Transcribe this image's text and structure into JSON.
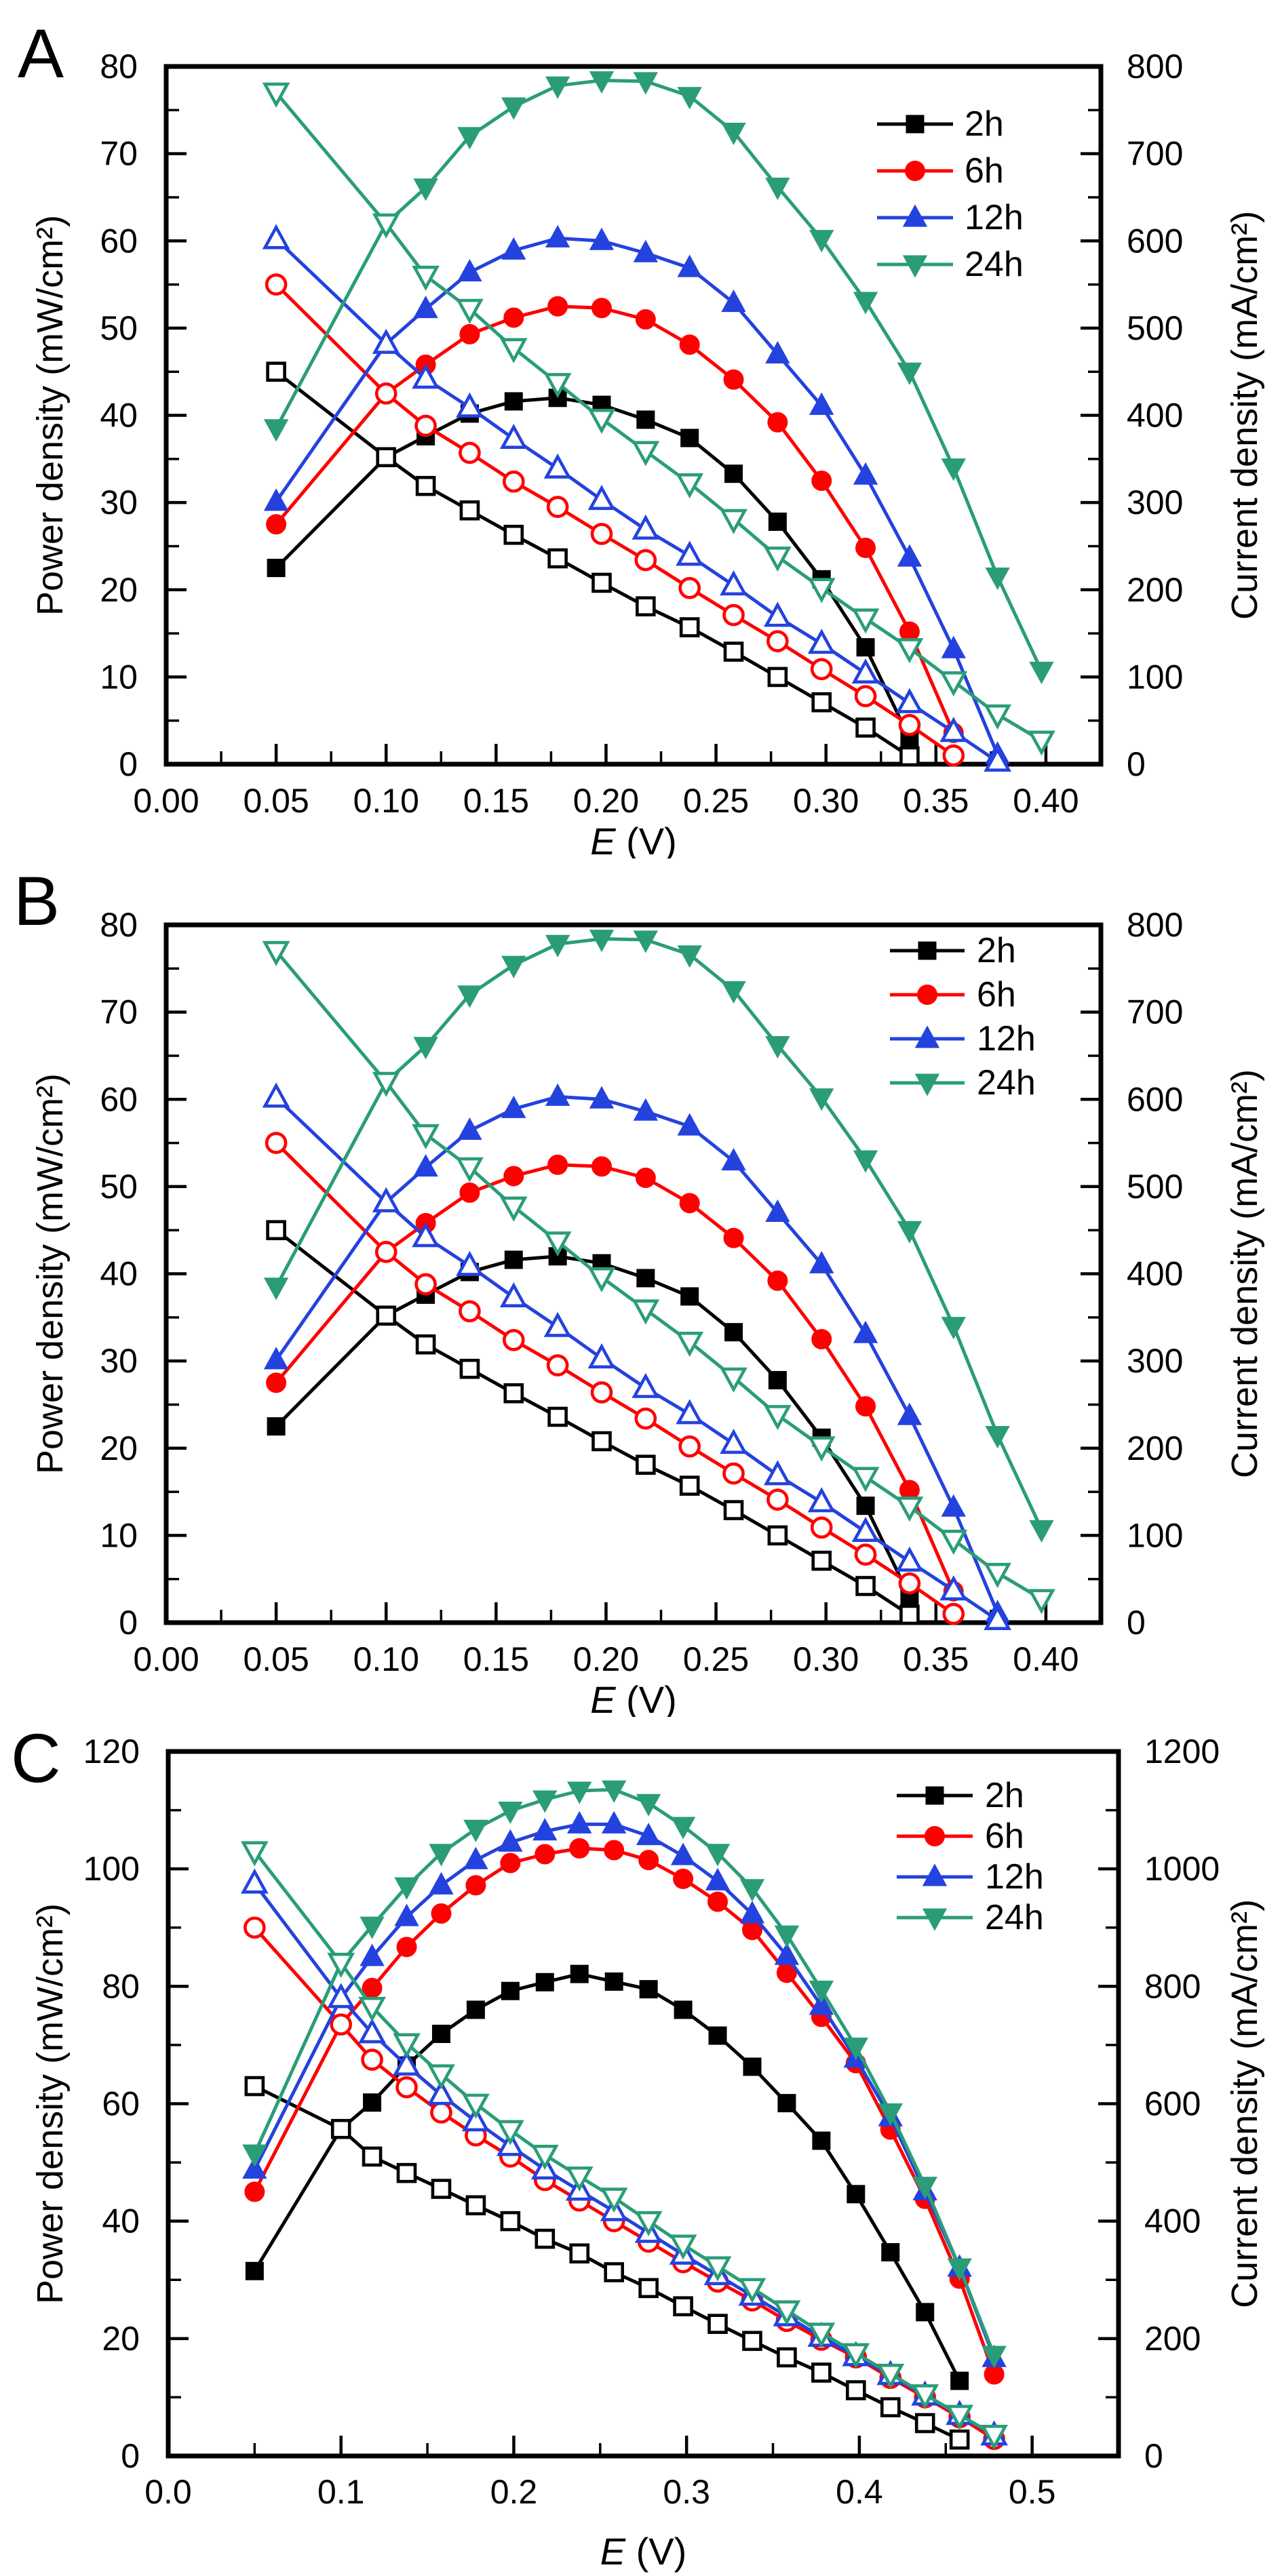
{
  "figure": {
    "background": "#ffffff",
    "text_color": "#000000"
  },
  "chart_data": [
    {
      "panel": "A",
      "type": "line",
      "xlabel": {
        "symbol": "E",
        "unit": "(V)"
      },
      "ylabel_left": "Power density (mW/cm²)",
      "ylabel_right": "Current density (mA/cm²)",
      "x_range": [
        0,
        0.425
      ],
      "y_left_range": [
        0,
        80
      ],
      "y_right_range": [
        0,
        800
      ],
      "x_ticks": {
        "major": [
          0,
          0.05,
          0.1,
          0.15,
          0.2,
          0.25,
          0.3,
          0.35,
          0.4
        ],
        "labels": [
          "0.00",
          "0.05",
          "0.10",
          "0.15",
          "0.20",
          "0.25",
          "0.30",
          "0.35",
          "0.40"
        ],
        "minor": [
          0.025,
          0.075,
          0.125,
          0.175,
          0.225,
          0.275,
          0.325,
          0.375
        ]
      },
      "y_left_ticks": {
        "major": [
          0,
          10,
          20,
          30,
          40,
          50,
          60,
          70,
          80
        ],
        "labels": [
          "0",
          "10",
          "20",
          "30",
          "40",
          "50",
          "60",
          "70",
          "80"
        ],
        "minor": [
          5,
          15,
          25,
          35,
          45,
          55,
          65,
          75
        ]
      },
      "y_right_ticks": {
        "major": [
          0,
          100,
          200,
          300,
          400,
          500,
          600,
          700,
          800
        ],
        "labels": [
          "0",
          "100",
          "200",
          "300",
          "400",
          "500",
          "600",
          "700",
          "800"
        ],
        "minor": [
          50,
          150,
          250,
          350,
          450,
          550,
          650,
          750
        ]
      },
      "legend": {
        "position": "top-right",
        "entries": [
          "2h",
          "6h",
          "12h",
          "24h"
        ]
      },
      "series": [
        {
          "name": "2h",
          "color": "#000000",
          "marker": "square",
          "x": [
            0.05,
            0.1,
            0.118,
            0.138,
            0.158,
            0.178,
            0.198,
            0.218,
            0.238,
            0.258,
            0.278,
            0.298,
            0.318,
            0.338
          ],
          "power_mW_cm2": [
            22.5,
            35.2,
            37.6,
            40.2,
            41.6,
            42.0,
            41.2,
            39.5,
            37.4,
            33.3,
            27.8,
            21.2,
            13.4,
            3.0
          ],
          "current_mA_cm2": [
            450,
            352,
            319,
            291,
            263,
            236,
            208,
            181,
            157,
            129,
            100,
            71,
            42,
            9
          ]
        },
        {
          "name": "6h",
          "color": "#ff0000",
          "marker": "circle",
          "x": [
            0.05,
            0.1,
            0.118,
            0.138,
            0.158,
            0.178,
            0.198,
            0.218,
            0.238,
            0.258,
            0.278,
            0.298,
            0.318,
            0.338,
            0.358
          ],
          "power_mW_cm2": [
            27.5,
            42.5,
            45.8,
            49.3,
            51.2,
            52.5,
            52.3,
            51.0,
            48.1,
            44.1,
            39.2,
            32.5,
            24.8,
            15.2,
            3.6
          ],
          "current_mA_cm2": [
            550,
            425,
            388,
            357,
            324,
            295,
            264,
            234,
            202,
            171,
            141,
            109,
            78,
            45,
            10
          ]
        },
        {
          "name": "12h",
          "color": "#2442dd",
          "marker": "triangle-up",
          "x": [
            0.05,
            0.1,
            0.118,
            0.138,
            0.158,
            0.178,
            0.198,
            0.218,
            0.238,
            0.258,
            0.278,
            0.298,
            0.318,
            0.338,
            0.358,
            0.378
          ],
          "power_mW_cm2": [
            30.1,
            48.2,
            52.2,
            56.4,
            58.9,
            60.3,
            60.0,
            58.6,
            56.9,
            52.9,
            47.0,
            41.1,
            33.1,
            23.7,
            13.2,
            1.1
          ],
          "current_mA_cm2": [
            602,
            482,
            442,
            409,
            373,
            339,
            303,
            269,
            239,
            205,
            169,
            138,
            104,
            70,
            37,
            3
          ]
        },
        {
          "name": "24h",
          "color": "#2a9d78",
          "marker": "triangle-down",
          "x": [
            0.05,
            0.1,
            0.118,
            0.138,
            0.158,
            0.178,
            0.198,
            0.218,
            0.238,
            0.258,
            0.278,
            0.298,
            0.318,
            0.338,
            0.358,
            0.378,
            0.398
          ],
          "power_mW_cm2": [
            38.5,
            62.0,
            66.1,
            72.0,
            75.4,
            77.8,
            78.4,
            78.3,
            76.6,
            72.5,
            66.2,
            60.2,
            53.1,
            45.0,
            34.0,
            21.5,
            10.7
          ],
          "current_mA_cm2": [
            770,
            620,
            560,
            522,
            477,
            437,
            396,
            359,
            322,
            281,
            238,
            202,
            167,
            133,
            95,
            57,
            27
          ]
        }
      ]
    },
    {
      "panel": "B",
      "type": "line",
      "xlabel": {
        "symbol": "E",
        "unit": "(V)"
      },
      "ylabel_left": "Power density (mW/cm²)",
      "ylabel_right": "Current  density  (mA/cm²)",
      "x_range": [
        0,
        0.425
      ],
      "y_left_range": [
        0,
        80
      ],
      "y_right_range": [
        0,
        800
      ],
      "x_ticks": {
        "major": [
          0,
          0.05,
          0.1,
          0.15,
          0.2,
          0.25,
          0.3,
          0.35,
          0.4
        ],
        "labels": [
          "0.00",
          "0.05",
          "0.10",
          "0.15",
          "0.20",
          "0.25",
          "0.30",
          "0.35",
          "0.40"
        ],
        "minor": [
          0.025,
          0.075,
          0.125,
          0.175,
          0.225,
          0.275,
          0.325,
          0.375
        ]
      },
      "y_left_ticks": {
        "major": [
          0,
          10,
          20,
          30,
          40,
          50,
          60,
          70,
          80
        ],
        "labels": [
          "0",
          "10",
          "20",
          "30",
          "40",
          "50",
          "60",
          "70",
          "80"
        ],
        "minor": [
          5,
          15,
          25,
          35,
          45,
          55,
          65,
          75
        ]
      },
      "y_right_ticks": {
        "major": [
          0,
          100,
          200,
          300,
          400,
          500,
          600,
          700,
          800
        ],
        "labels": [
          "0",
          "100",
          "200",
          "300",
          "400",
          "500",
          "600",
          "700",
          "800"
        ],
        "minor": [
          50,
          150,
          250,
          350,
          450,
          550,
          650,
          750
        ]
      },
      "legend": {
        "position": "top-right",
        "entries": [
          "2h",
          "6h",
          "12h",
          "24h"
        ]
      },
      "series": [
        {
          "name": "2h",
          "color": "#000000",
          "marker": "square",
          "x": [
            0.05,
            0.1,
            0.118,
            0.138,
            0.158,
            0.178,
            0.198,
            0.218,
            0.238,
            0.258,
            0.278,
            0.298,
            0.318,
            0.338
          ],
          "power_mW_cm2": [
            22.5,
            35.2,
            37.6,
            40.2,
            41.6,
            42.0,
            41.2,
            39.5,
            37.4,
            33.3,
            27.8,
            21.2,
            13.4,
            3.0
          ],
          "current_mA_cm2": [
            450,
            352,
            319,
            291,
            263,
            236,
            208,
            181,
            157,
            129,
            100,
            71,
            42,
            9
          ]
        },
        {
          "name": "6h",
          "color": "#ff0000",
          "marker": "circle",
          "x": [
            0.05,
            0.1,
            0.118,
            0.138,
            0.158,
            0.178,
            0.198,
            0.218,
            0.238,
            0.258,
            0.278,
            0.298,
            0.318,
            0.338,
            0.358
          ],
          "power_mW_cm2": [
            27.5,
            42.5,
            45.8,
            49.3,
            51.2,
            52.5,
            52.3,
            51.0,
            48.1,
            44.1,
            39.2,
            32.5,
            24.8,
            15.2,
            3.6
          ],
          "current_mA_cm2": [
            550,
            425,
            388,
            357,
            324,
            295,
            264,
            234,
            202,
            171,
            141,
            109,
            78,
            45,
            10
          ]
        },
        {
          "name": "12h",
          "color": "#2442dd",
          "marker": "triangle-up",
          "x": [
            0.05,
            0.1,
            0.118,
            0.138,
            0.158,
            0.178,
            0.198,
            0.218,
            0.238,
            0.258,
            0.278,
            0.298,
            0.318,
            0.338,
            0.358,
            0.378
          ],
          "power_mW_cm2": [
            30.1,
            48.2,
            52.2,
            56.4,
            58.9,
            60.3,
            60.0,
            58.6,
            56.9,
            52.9,
            47.0,
            41.1,
            33.1,
            23.7,
            13.2,
            1.1
          ],
          "current_mA_cm2": [
            602,
            482,
            442,
            409,
            373,
            339,
            303,
            269,
            239,
            205,
            169,
            138,
            104,
            70,
            37,
            3
          ]
        },
        {
          "name": "24h",
          "color": "#2a9d78",
          "marker": "triangle-down",
          "x": [
            0.05,
            0.1,
            0.118,
            0.138,
            0.158,
            0.178,
            0.198,
            0.218,
            0.238,
            0.258,
            0.278,
            0.298,
            0.318,
            0.338,
            0.358,
            0.378,
            0.398
          ],
          "power_mW_cm2": [
            38.5,
            62.0,
            66.1,
            72.0,
            75.4,
            77.8,
            78.4,
            78.3,
            76.6,
            72.5,
            66.2,
            60.2,
            53.1,
            45.0,
            34.0,
            21.5,
            10.7
          ],
          "current_mA_cm2": [
            770,
            620,
            560,
            522,
            477,
            437,
            396,
            359,
            322,
            281,
            238,
            202,
            167,
            133,
            95,
            57,
            27
          ]
        }
      ]
    },
    {
      "panel": "C",
      "type": "line",
      "xlabel": {
        "symbol": "E",
        "unit": "(V)"
      },
      "ylabel_left": "Power density (mW/cm²)",
      "ylabel_right": "Current density (mA/cm²)",
      "x_range": [
        0,
        0.55
      ],
      "y_left_range": [
        0,
        120
      ],
      "y_right_range": [
        0,
        1200
      ],
      "x_ticks": {
        "major": [
          0,
          0.1,
          0.2,
          0.3,
          0.4,
          0.5
        ],
        "labels": [
          "0.0",
          "0.1",
          "0.2",
          "0.3",
          "0.4",
          "0.5"
        ],
        "minor": [
          0.05,
          0.15,
          0.25,
          0.35,
          0.45
        ]
      },
      "y_left_ticks": {
        "major": [
          0,
          20,
          40,
          60,
          80,
          100,
          120
        ],
        "labels": [
          "0",
          "20",
          "40",
          "60",
          "80",
          "100",
          "120"
        ],
        "minor": [
          10,
          30,
          50,
          70,
          90,
          110
        ]
      },
      "y_right_ticks": {
        "major": [
          0,
          200,
          400,
          600,
          800,
          1000,
          1200
        ],
        "labels": [
          "0",
          "200",
          "400",
          "600",
          "800",
          "1000",
          "1200"
        ],
        "minor": [
          100,
          300,
          500,
          700,
          900,
          1100
        ]
      },
      "legend": {
        "position": "top-right",
        "entries": [
          "2h",
          "6h",
          "12h",
          "24h"
        ]
      },
      "series": [
        {
          "name": "2h",
          "color": "#000000",
          "marker": "square",
          "x": [
            0.05,
            0.1,
            0.118,
            0.138,
            0.158,
            0.178,
            0.198,
            0.218,
            0.238,
            0.258,
            0.278,
            0.298,
            0.318,
            0.338,
            0.358,
            0.378,
            0.398,
            0.418,
            0.438,
            0.458
          ],
          "power_mW_cm2": [
            31.5,
            55.7,
            60.2,
            66.5,
            71.9,
            76.0,
            79.2,
            80.7,
            82.1,
            80.8,
            79.5,
            76.0,
            71.6,
            66.3,
            60.1,
            53.7,
            44.6,
            34.7,
            24.5,
            12.8
          ],
          "current_mA_cm2": [
            630,
            557,
            510,
            482,
            455,
            427,
            400,
            370,
            345,
            313,
            286,
            255,
            225,
            196,
            168,
            142,
            112,
            83,
            56,
            28
          ]
        },
        {
          "name": "6h",
          "color": "#ff0000",
          "marker": "circle",
          "x": [
            0.05,
            0.1,
            0.118,
            0.138,
            0.158,
            0.178,
            0.198,
            0.218,
            0.238,
            0.258,
            0.278,
            0.298,
            0.318,
            0.338,
            0.358,
            0.378,
            0.398,
            0.418,
            0.438,
            0.458,
            0.478
          ],
          "power_mW_cm2": [
            45.0,
            73.5,
            79.7,
            86.7,
            92.4,
            97.2,
            101.0,
            102.5,
            103.5,
            103.2,
            101.5,
            98.3,
            94.4,
            89.6,
            82.3,
            74.8,
            66.9,
            55.6,
            43.8,
            30.2,
            13.9
          ],
          "current_mA_cm2": [
            900,
            735,
            675,
            628,
            585,
            546,
            510,
            470,
            435,
            400,
            365,
            330,
            297,
            265,
            230,
            198,
            168,
            133,
            100,
            66,
            29
          ]
        },
        {
          "name": "12h",
          "color": "#2442dd",
          "marker": "triangle-up",
          "x": [
            0.05,
            0.1,
            0.118,
            0.138,
            0.158,
            0.178,
            0.198,
            0.218,
            0.238,
            0.258,
            0.278,
            0.298,
            0.318,
            0.338,
            0.358,
            0.378,
            0.398,
            0.418,
            0.438,
            0.458,
            0.478
          ],
          "power_mW_cm2": [
            48.8,
            78.0,
            85.0,
            91.8,
            97.2,
            101.5,
            104.5,
            106.4,
            107.6,
            107.6,
            105.6,
            102.2,
            97.9,
            92.3,
            85.2,
            76.7,
            67.7,
            57.7,
            45.1,
            32.1,
            16.7
          ],
          "current_mA_cm2": [
            975,
            780,
            720,
            665,
            615,
            570,
            528,
            488,
            452,
            417,
            380,
            343,
            308,
            273,
            238,
            203,
            170,
            138,
            103,
            70,
            35
          ]
        },
        {
          "name": "24h",
          "color": "#2a9d78",
          "marker": "triangle-down",
          "x": [
            0.05,
            0.1,
            0.118,
            0.138,
            0.158,
            0.178,
            0.198,
            0.218,
            0.238,
            0.258,
            0.278,
            0.298,
            0.318,
            0.338,
            0.358,
            0.378,
            0.398,
            0.418,
            0.438,
            0.458,
            0.478
          ],
          "power_mW_cm2": [
            51.5,
            84.0,
            90.3,
            97.0,
            102.7,
            106.8,
            109.9,
            111.8,
            113.3,
            113.5,
            111.2,
            107.3,
            102.7,
            96.7,
            88.8,
            79.4,
            69.7,
            58.5,
            46.0,
            32.1,
            17.2
          ],
          "current_mA_cm2": [
            1030,
            840,
            765,
            703,
            650,
            600,
            555,
            513,
            476,
            440,
            400,
            360,
            323,
            286,
            248,
            210,
            175,
            140,
            105,
            70,
            36
          ]
        }
      ]
    }
  ]
}
